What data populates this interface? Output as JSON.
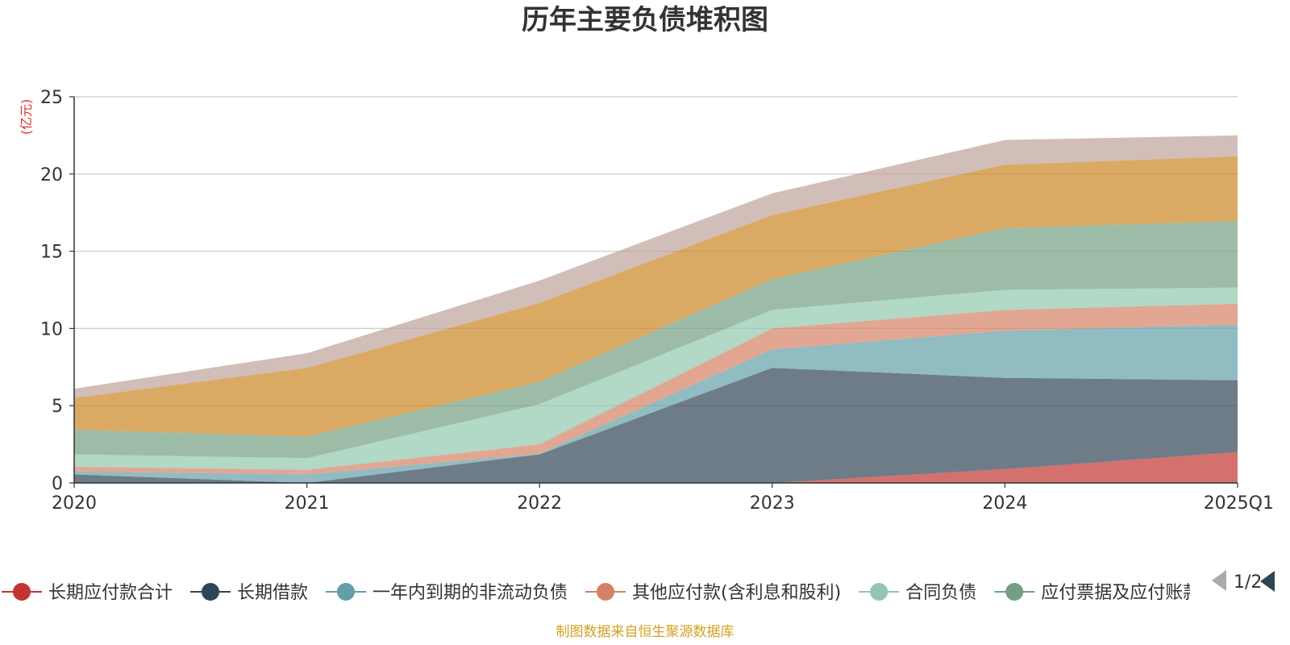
{
  "chart_data": {
    "type": "area",
    "stacked": true,
    "title": "历年主要负债堆积图",
    "unit_label": "(亿元)",
    "categories": [
      "2020",
      "2021",
      "2022",
      "2023",
      "2024",
      "2025Q1"
    ],
    "ylim": [
      0,
      25
    ],
    "yticks": [
      0,
      5,
      10,
      15,
      20,
      25
    ],
    "grid": true,
    "legend_position": "bottom",
    "series": [
      {
        "name": "长期应付款合计",
        "color": "#c23531",
        "values": [
          0,
          0,
          0,
          0,
          0.9,
          2.0
        ]
      },
      {
        "name": "长期借款",
        "color": "#2f4554",
        "values": [
          0.55,
          0.0,
          1.85,
          7.45,
          5.9,
          4.65
        ]
      },
      {
        "name": "一年内到期的非流动负债",
        "color": "#61a0a8",
        "values": [
          0.2,
          0.55,
          0.05,
          1.2,
          3.05,
          3.6
        ]
      },
      {
        "name": "其他应付款(含利息和股利)",
        "color": "#d48265",
        "values": [
          0.3,
          0.3,
          0.6,
          1.35,
          1.35,
          1.35
        ]
      },
      {
        "name": "合同负债",
        "color": "#91c7ae",
        "values": [
          0.8,
          0.75,
          2.6,
          1.2,
          1.3,
          1.05
        ]
      },
      {
        "name": "应付票据及应付账款",
        "color": "#749f83",
        "values": [
          1.6,
          1.4,
          1.45,
          2.0,
          4.0,
          4.3
        ]
      },
      {
        "name": "",
        "color": "#ca8622",
        "values": [
          2.05,
          4.45,
          5.1,
          4.15,
          4.1,
          4.2
        ]
      },
      {
        "name": "",
        "color": "#bda29a",
        "values": [
          0.6,
          0.95,
          1.45,
          1.4,
          1.6,
          1.35
        ]
      }
    ]
  },
  "legend": {
    "items": [
      {
        "label": "长期应付款合计",
        "color": "#c23531"
      },
      {
        "label": "长期借款",
        "color": "#2f4554"
      },
      {
        "label": "一年内到期的非流动负债",
        "color": "#61a0a8"
      },
      {
        "label": "其他应付款(含利息和股利)",
        "color": "#d48265"
      },
      {
        "label": "合同负债",
        "color": "#91c7ae"
      },
      {
        "label": "应付票据及应付账款",
        "color": "#749f83"
      }
    ],
    "page_indicator": "1/2",
    "prev_icon": "triangle-left-icon",
    "next_icon": "triangle-right-icon"
  },
  "footer": {
    "source": "制图数据来自恒生聚源数据库"
  }
}
